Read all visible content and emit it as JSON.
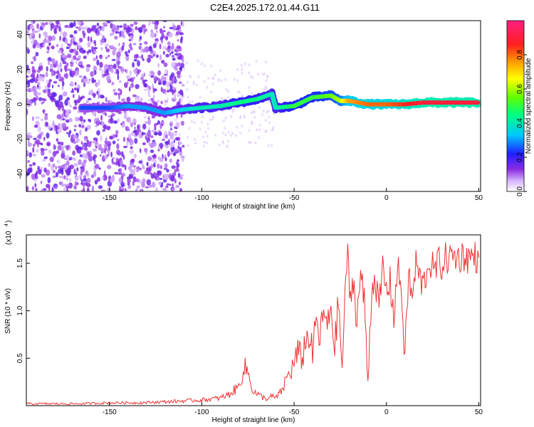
{
  "figure_title": "C2E4.2025.172.01.44.G11",
  "chart_data": [
    {
      "type": "heatmap",
      "title": "C2E4.2025.172.01.44.G11",
      "xlabel": "Height of straight line (km)",
      "ylabel": "Frequency (Hz)",
      "xlim": [
        -195,
        51
      ],
      "ylim": [
        -50,
        48
      ],
      "x_ticks": [
        -150,
        -100,
        -50,
        0,
        50
      ],
      "y_ticks": [
        -40,
        -20,
        0,
        20,
        40
      ],
      "x_tick_labels": [
        "-150",
        "-100",
        "-50",
        "0",
        "50"
      ],
      "y_tick_labels": [
        "-40",
        "-20",
        "0",
        "20",
        "40"
      ],
      "colorbar": {
        "label": "Normalized spectral amplitude",
        "range": [
          0,
          1
        ],
        "ticks": [
          0.0,
          0.2,
          0.4,
          0.6,
          0.8
        ],
        "tick_labels": [
          "0.0",
          "0.2",
          "0.4",
          "0.6",
          "0.8"
        ],
        "colormap": "rainbow (white-violet-blue-cyan-green-yellow-orange-red-magenta)"
      },
      "ridge_track": [
        {
          "x": -165,
          "freq": -2,
          "amp": 0.25
        },
        {
          "x": -150,
          "freq": -2,
          "amp": 0.25
        },
        {
          "x": -140,
          "freq": -1,
          "amp": 0.3
        },
        {
          "x": -130,
          "freq": -2,
          "amp": 0.3
        },
        {
          "x": -120,
          "freq": -5,
          "amp": 0.3
        },
        {
          "x": -110,
          "freq": -3,
          "amp": 0.35
        },
        {
          "x": -100,
          "freq": -2,
          "amp": 0.4
        },
        {
          "x": -90,
          "freq": -1,
          "amp": 0.4
        },
        {
          "x": -80,
          "freq": 1,
          "amp": 0.45
        },
        {
          "x": -70,
          "freq": 3,
          "amp": 0.45
        },
        {
          "x": -62,
          "freq": 6,
          "amp": 0.4
        },
        {
          "x": -60,
          "freq": -2,
          "amp": 0.4
        },
        {
          "x": -50,
          "freq": -1,
          "amp": 0.5
        },
        {
          "x": -40,
          "freq": 4,
          "amp": 0.5
        },
        {
          "x": -30,
          "freq": 5,
          "amp": 0.55
        },
        {
          "x": -25,
          "freq": 2,
          "amp": 0.6
        },
        {
          "x": -20,
          "freq": 2,
          "amp": 0.75
        },
        {
          "x": -10,
          "freq": 0,
          "amp": 0.8
        },
        {
          "x": 0,
          "freq": 0,
          "amp": 0.8
        },
        {
          "x": 10,
          "freq": 0,
          "amp": 0.85
        },
        {
          "x": 20,
          "freq": 1,
          "amp": 0.9
        },
        {
          "x": 30,
          "freq": 1,
          "amp": 0.9
        },
        {
          "x": 40,
          "freq": 1,
          "amp": 0.9
        },
        {
          "x": 50,
          "freq": 1,
          "amp": 0.9
        }
      ]
    },
    {
      "type": "line",
      "xlabel": "Height of straight line (km)",
      "ylabel": "SNR (10 * v/v)",
      "y_multiplier_label": "(x10",
      "y_multiplier_exp": "4",
      "xlim": [
        -195,
        51
      ],
      "ylim": [
        0,
        1.8
      ],
      "x_ticks": [
        -150,
        -100,
        -50,
        0,
        50
      ],
      "y_ticks": [
        0.5,
        1.0,
        1.5
      ],
      "x_tick_labels": [
        "-150",
        "-100",
        "-50",
        "0",
        "50"
      ],
      "y_tick_labels": [
        "0.5",
        "1.0",
        "1.5"
      ],
      "series": [
        {
          "color": "#ee3333",
          "x": [
            -195,
            -180,
            -165,
            -150,
            -135,
            -120,
            -110,
            -100,
            -90,
            -85,
            -80,
            -78,
            -76,
            -74,
            -72,
            -70,
            -68,
            -66,
            -64,
            -62,
            -60,
            -58,
            -56,
            -54,
            -52,
            -50,
            -48,
            -46,
            -44,
            -42,
            -40,
            -38,
            -36,
            -34,
            -32,
            -30,
            -28,
            -26,
            -24,
            -22,
            -21,
            -20,
            -18,
            -16,
            -14,
            -12,
            -10,
            -8,
            -6,
            -4,
            -2,
            0,
            2,
            4,
            6,
            8,
            10,
            12,
            14,
            16,
            18,
            20,
            22,
            24,
            26,
            28,
            30,
            32,
            34,
            36,
            38,
            40,
            42,
            44,
            46,
            48,
            50
          ],
          "y": [
            0.02,
            0.02,
            0.02,
            0.03,
            0.03,
            0.04,
            0.05,
            0.06,
            0.08,
            0.12,
            0.2,
            0.35,
            0.4,
            0.28,
            0.15,
            0.12,
            0.1,
            0.08,
            0.07,
            0.1,
            0.08,
            0.12,
            0.18,
            0.3,
            0.35,
            0.45,
            0.55,
            0.5,
            0.65,
            0.75,
            0.55,
            0.9,
            0.7,
            1.0,
            0.8,
            1.05,
            0.6,
            1.1,
            0.4,
            1.3,
            1.75,
            1.0,
            1.35,
            0.9,
            1.4,
            1.1,
            0.25,
            1.25,
            1.35,
            1.0,
            1.45,
            1.2,
            1.3,
            0.95,
            1.45,
            1.25,
            0.5,
            1.4,
            1.1,
            1.5,
            1.35,
            1.25,
            1.45,
            1.5,
            1.4,
            1.52,
            1.48,
            1.55,
            1.55,
            1.58,
            1.56,
            1.57,
            1.58,
            1.56,
            1.57,
            1.57,
            1.56
          ]
        }
      ]
    }
  ]
}
